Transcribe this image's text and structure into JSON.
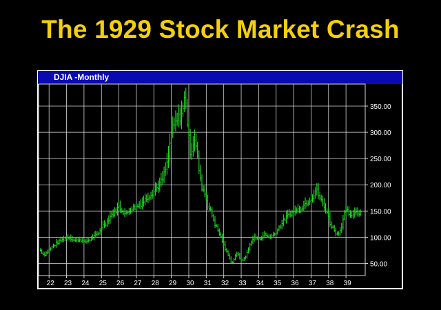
{
  "slide": {
    "title": "The 1929 Stock Market Crash"
  },
  "window": {
    "title": "DJIA -Monthly"
  },
  "colors": {
    "background": "#000000",
    "title": "#f5cf0a",
    "titlebar": "#0a0ab0",
    "series": "#22dd22",
    "grid": "#d8d8d8"
  },
  "chart_data": {
    "type": "line",
    "title": "DJIA -Monthly",
    "xlabel": "",
    "ylabel": "",
    "x_ticks": [
      "22",
      "23",
      "24",
      "25",
      "26",
      "27",
      "28",
      "29",
      "30",
      "31",
      "32",
      "33",
      "34",
      "35",
      "36",
      "37",
      "38",
      "39"
    ],
    "y_ticks": [
      "350.00",
      "300.00",
      "250.00",
      "200.00",
      "150.00",
      "100.00",
      "50.00"
    ],
    "xlim": [
      1921.4,
      1940.1
    ],
    "ylim": [
      27,
      392
    ],
    "grid": true,
    "y_axis_side": "right",
    "series": [
      {
        "style": "monthly-range-bars",
        "x": [
          1921.5,
          1921.7,
          1921.9,
          1922.2,
          1922.5,
          1922.8,
          1923.0,
          1923.2,
          1923.5,
          1923.8,
          1924.0,
          1924.3,
          1924.5,
          1924.8,
          1925.0,
          1925.3,
          1925.5,
          1925.8,
          1926.0,
          1926.2,
          1926.4,
          1926.7,
          1927.0,
          1927.3,
          1927.6,
          1927.9,
          1928.2,
          1928.5,
          1928.8,
          1929.0,
          1929.3,
          1929.5,
          1929.7,
          1929.8,
          1929.95,
          1930.1,
          1930.25,
          1930.35,
          1930.5,
          1930.7,
          1930.9,
          1931.1,
          1931.3,
          1931.5,
          1931.7,
          1931.9,
          1932.1,
          1932.3,
          1932.45,
          1932.6,
          1932.8,
          1933.0,
          1933.2,
          1933.4,
          1933.6,
          1933.8,
          1934.0,
          1934.3,
          1934.6,
          1934.9,
          1935.2,
          1935.5,
          1935.8,
          1936.1,
          1936.4,
          1936.7,
          1937.0,
          1937.15,
          1937.3,
          1937.5,
          1937.7,
          1937.9,
          1938.1,
          1938.3,
          1938.5,
          1938.7,
          1938.9,
          1939.1,
          1939.3,
          1939.5,
          1939.7,
          1939.9
        ],
        "values": [
          75,
          66,
          72,
          82,
          90,
          96,
          100,
          99,
          93,
          96,
          90,
          95,
          100,
          105,
          120,
          128,
          140,
          150,
          158,
          150,
          143,
          155,
          158,
          165,
          175,
          185,
          195,
          210,
          245,
          300,
          320,
          330,
          345,
          380,
          300,
          260,
          280,
          290,
          250,
          200,
          185,
          160,
          145,
          125,
          110,
          95,
          75,
          65,
          48,
          60,
          70,
          55,
          60,
          75,
          95,
          100,
          95,
          105,
          100,
          105,
          120,
          135,
          145,
          150,
          155,
          165,
          175,
          180,
          190,
          175,
          160,
          150,
          125,
          115,
          105,
          115,
          145,
          150,
          135,
          150,
          145,
          152
        ]
      }
    ]
  }
}
